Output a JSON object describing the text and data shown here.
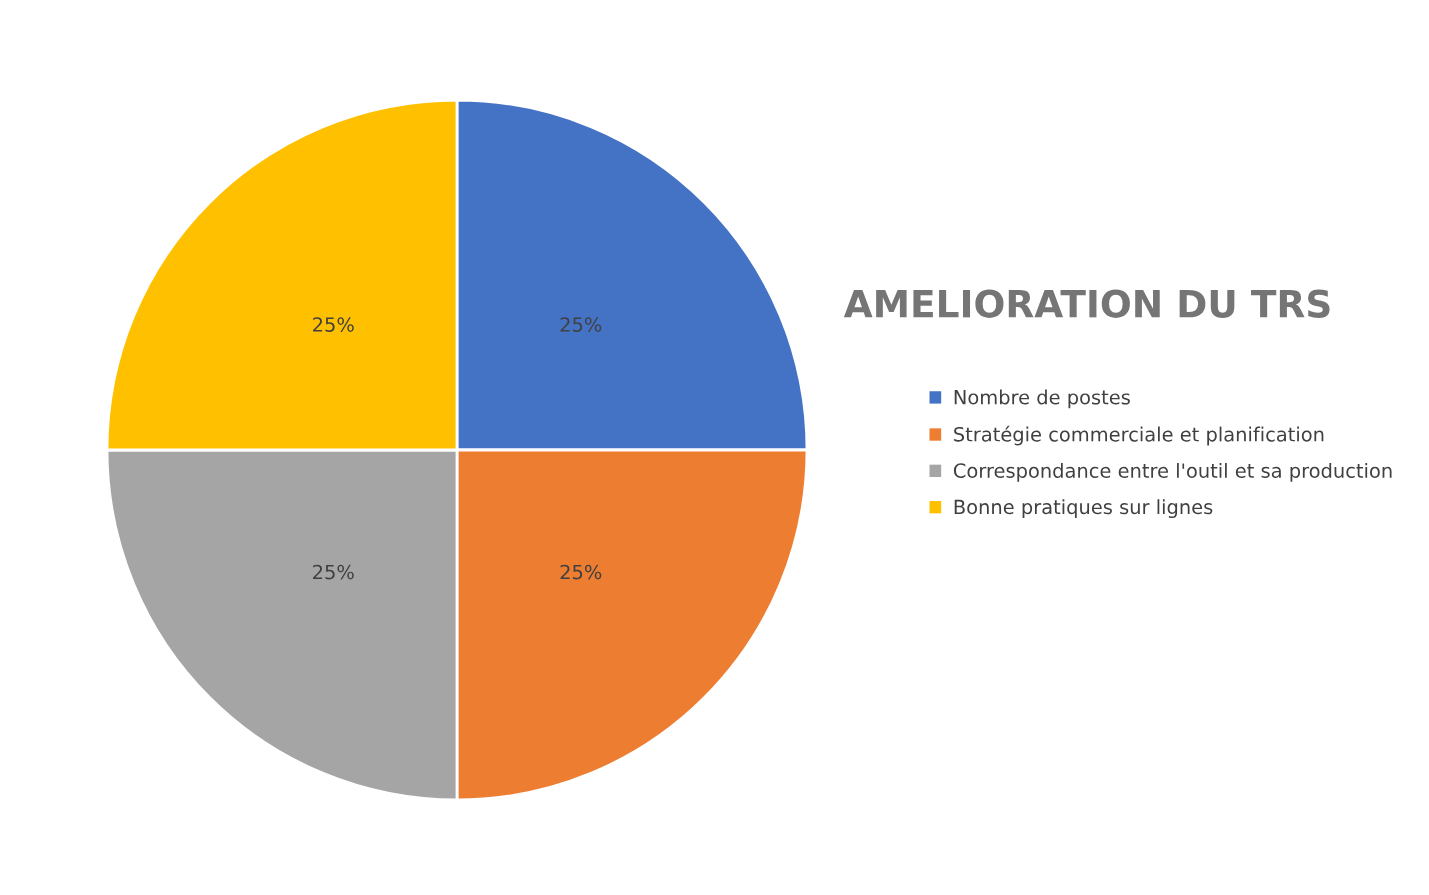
{
  "chart_data": {
    "type": "pie",
    "title": "AMELIORATION DU TRS",
    "categories": [
      "Nombre de postes",
      "Stratégie commerciale et planification",
      "Correspondance entre l'outil et sa production",
      "Bonne pratiques sur lignes"
    ],
    "values": [
      25,
      25,
      25,
      25
    ],
    "colors": [
      "#4472c4",
      "#ed7d31",
      "#a5a5a5",
      "#ffc000"
    ],
    "value_labels": [
      "25%",
      "25%",
      "25%",
      "25%"
    ],
    "legend": "right"
  }
}
